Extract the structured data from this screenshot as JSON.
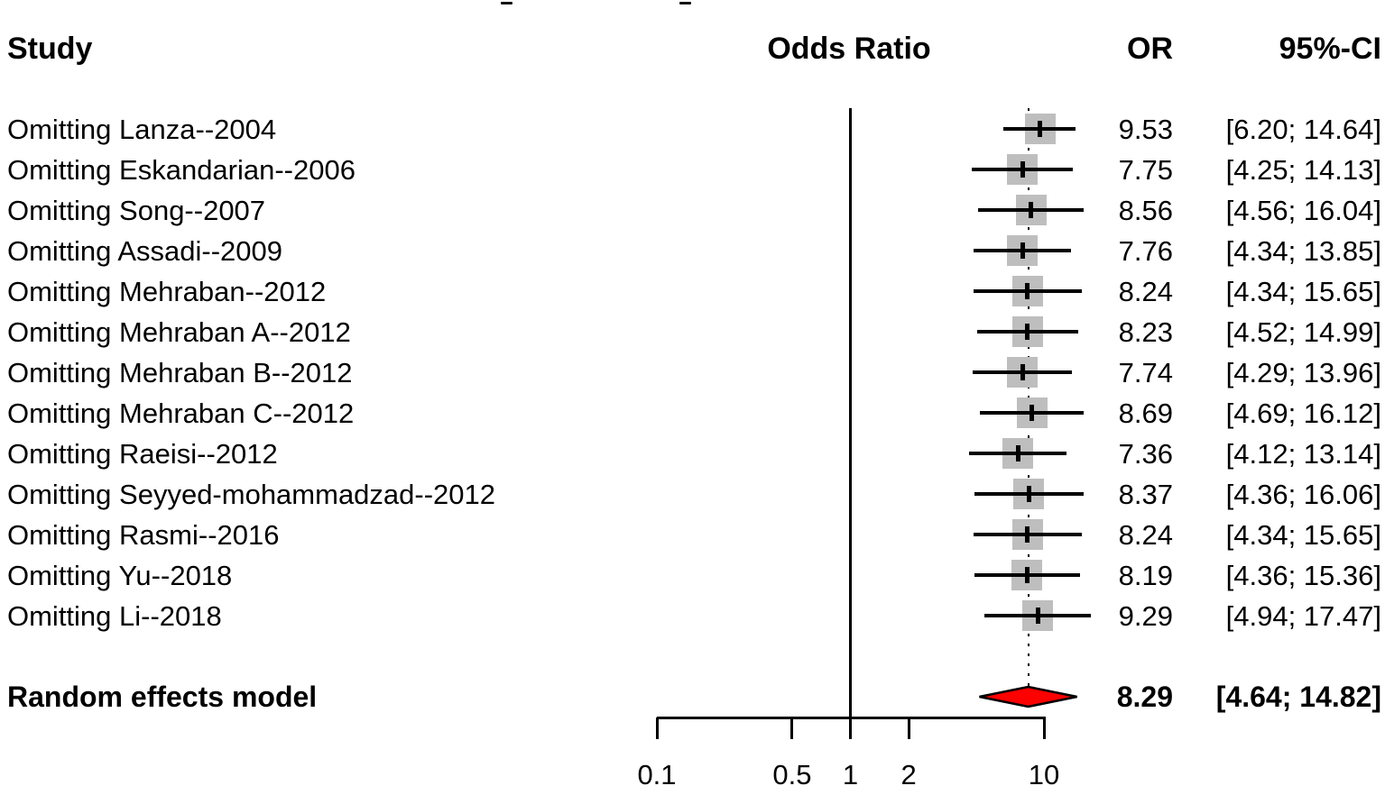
{
  "header": {
    "study": "Study",
    "odds_ratio": "Odds Ratio",
    "or": "OR",
    "ci": "95%-CI"
  },
  "chart_data": {
    "type": "forest",
    "title": "",
    "xlabel": "",
    "x_axis": {
      "scale": "log",
      "ticks": [
        0.1,
        0.5,
        1,
        2,
        10
      ],
      "tick_labels": [
        "0.1",
        "0.5",
        "1",
        "2",
        "10"
      ],
      "reference_line": 1,
      "pooled_dotted_line": 8.29
    },
    "studies": [
      {
        "label": "Omitting Lanza--2004",
        "or": 9.53,
        "low": 6.2,
        "high": 14.64,
        "or_text": "9.53",
        "ci_text": "[6.20; 14.64]"
      },
      {
        "label": "Omitting Eskandarian--2006",
        "or": 7.75,
        "low": 4.25,
        "high": 14.13,
        "or_text": "7.75",
        "ci_text": "[4.25; 14.13]"
      },
      {
        "label": "Omitting Song--2007",
        "or": 8.56,
        "low": 4.56,
        "high": 16.04,
        "or_text": "8.56",
        "ci_text": "[4.56; 16.04]"
      },
      {
        "label": "Omitting Assadi--2009",
        "or": 7.76,
        "low": 4.34,
        "high": 13.85,
        "or_text": "7.76",
        "ci_text": "[4.34; 13.85]"
      },
      {
        "label": "Omitting Mehraban--2012",
        "or": 8.24,
        "low": 4.34,
        "high": 15.65,
        "or_text": "8.24",
        "ci_text": "[4.34; 15.65]"
      },
      {
        "label": "Omitting Mehraban A--2012",
        "or": 8.23,
        "low": 4.52,
        "high": 14.99,
        "or_text": "8.23",
        "ci_text": "[4.52; 14.99]"
      },
      {
        "label": "Omitting Mehraban B--2012",
        "or": 7.74,
        "low": 4.29,
        "high": 13.96,
        "or_text": "7.74",
        "ci_text": "[4.29; 13.96]"
      },
      {
        "label": "Omitting Mehraban C--2012",
        "or": 8.69,
        "low": 4.69,
        "high": 16.12,
        "or_text": "8.69",
        "ci_text": "[4.69; 16.12]"
      },
      {
        "label": "Omitting Raeisi--2012",
        "or": 7.36,
        "low": 4.12,
        "high": 13.14,
        "or_text": "7.36",
        "ci_text": "[4.12; 13.14]"
      },
      {
        "label": "Omitting Seyyed-mohammadzad--2012",
        "or": 8.37,
        "low": 4.36,
        "high": 16.06,
        "or_text": "8.37",
        "ci_text": "[4.36; 16.06]"
      },
      {
        "label": "Omitting Rasmi--2016",
        "or": 8.24,
        "low": 4.34,
        "high": 15.65,
        "or_text": "8.24",
        "ci_text": "[4.34; 15.65]"
      },
      {
        "label": "Omitting Yu--2018",
        "or": 8.19,
        "low": 4.36,
        "high": 15.36,
        "or_text": "8.19",
        "ci_text": "[4.36; 15.36]"
      },
      {
        "label": "Omitting Li--2018",
        "or": 9.29,
        "low": 4.94,
        "high": 17.47,
        "or_text": "9.29",
        "ci_text": "[4.94; 17.47]"
      }
    ],
    "summary": {
      "label": "Random effects model",
      "or": 8.29,
      "low": 4.64,
      "high": 14.82,
      "or_text": "8.29",
      "ci_text": "[4.64; 14.82]"
    }
  },
  "colors": {
    "square": "#bebebe",
    "diamond_fill": "#ff0000",
    "diamond_stroke": "#000000",
    "line": "#000000",
    "text": "#000000"
  }
}
